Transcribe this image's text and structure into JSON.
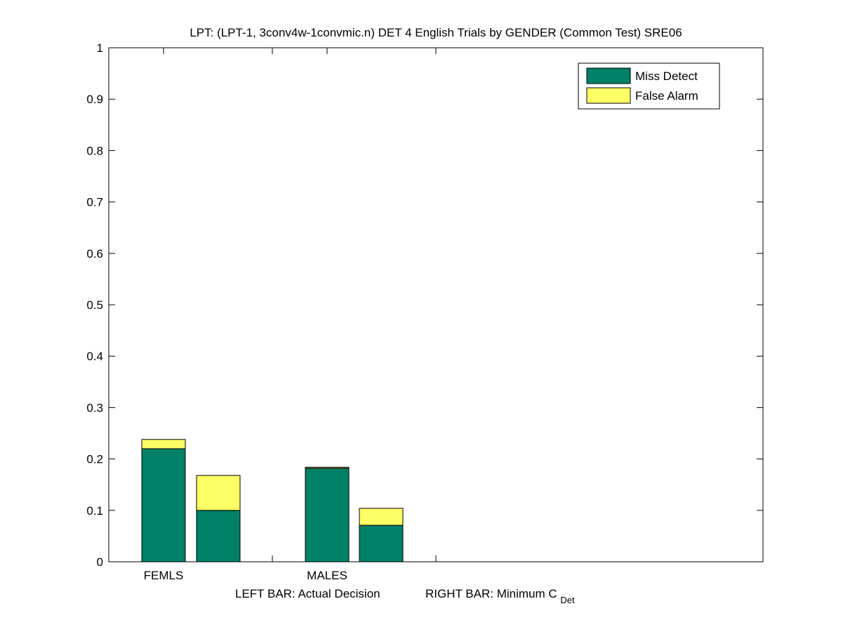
{
  "chart_data": {
    "type": "stacked-bar",
    "title": "LPT: (LPT-1, 3conv4w-1convmic.n) DET 4 English Trials by GENDER (Common Test) SRE06",
    "categories": [
      "FEMLS",
      null,
      "MALES",
      null
    ],
    "series": [
      {
        "name": "Miss Detect",
        "color": "#008066",
        "values": [
          0.22,
          0.1,
          0.182,
          0.071
        ]
      },
      {
        "name": "False Alarm",
        "color": "#ffff66",
        "values": [
          0.018,
          0.068,
          0.002,
          0.033
        ]
      }
    ],
    "xlabel": {
      "left": "LEFT BAR: Actual Decision",
      "right": "RIGHT BAR: Minimum C",
      "subscript": "Det"
    },
    "ylim": [
      0,
      1
    ],
    "yticks": [
      0,
      0.1,
      0.2,
      0.3,
      0.4,
      0.5,
      0.6,
      0.7,
      0.8,
      0.9,
      1
    ],
    "legend": "upper right"
  }
}
